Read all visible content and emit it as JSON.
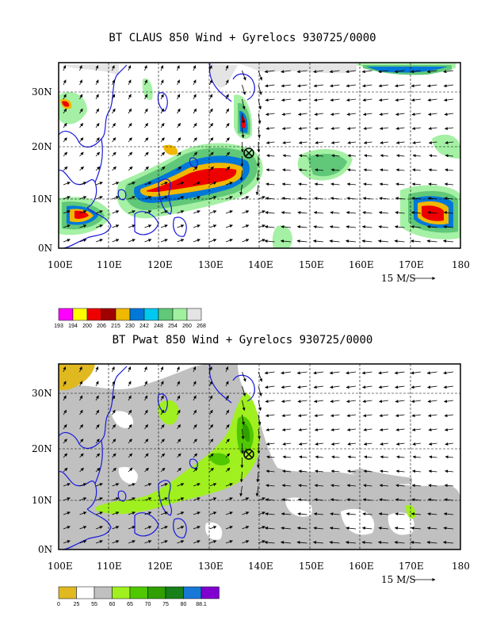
{
  "top_panel": {
    "title": "BT CLAUS 850 Wind + Gyrelocs 930725/0000",
    "reference_vector_label": "15 M/S",
    "legend": {
      "colors": [
        "#ff00ff",
        "#ffff00",
        "#ee0000",
        "#a00000",
        "#f0b800",
        "#0078d8",
        "#00c8f0",
        "#60c878",
        "#a0f0a0",
        "#e4e4e4"
      ],
      "labels": [
        "193",
        "194",
        "200",
        "206",
        "215",
        "230",
        "242",
        "248",
        "254",
        "260",
        "268"
      ]
    }
  },
  "bottom_panel": {
    "title": "BT Pwat 850 Wind + Gyrelocs 930725/0000",
    "reference_vector_label": "15 M/S",
    "legend": {
      "colors": [
        "#e0b820",
        "#ffffff",
        "#c0c0c0",
        "#a0f020",
        "#50c800",
        "#30a000",
        "#188018",
        "#1878d8",
        "#8000d0"
      ],
      "labels": [
        "0",
        "25",
        "55",
        "60",
        "65",
        "70",
        "75",
        "80",
        "88.1"
      ]
    }
  },
  "axes": {
    "x_ticks": [
      "100E",
      "110E",
      "120E",
      "130E",
      "140E",
      "150E",
      "160E",
      "170E",
      "180"
    ],
    "y_ticks": [
      "0N",
      "10N",
      "20N",
      "30N"
    ],
    "lon_range": [
      100,
      180
    ],
    "lat_range": [
      0,
      35
    ]
  },
  "gyre_location": {
    "lon": 137.8,
    "lat": 18.8,
    "marker": "circled-x-icon"
  }
}
